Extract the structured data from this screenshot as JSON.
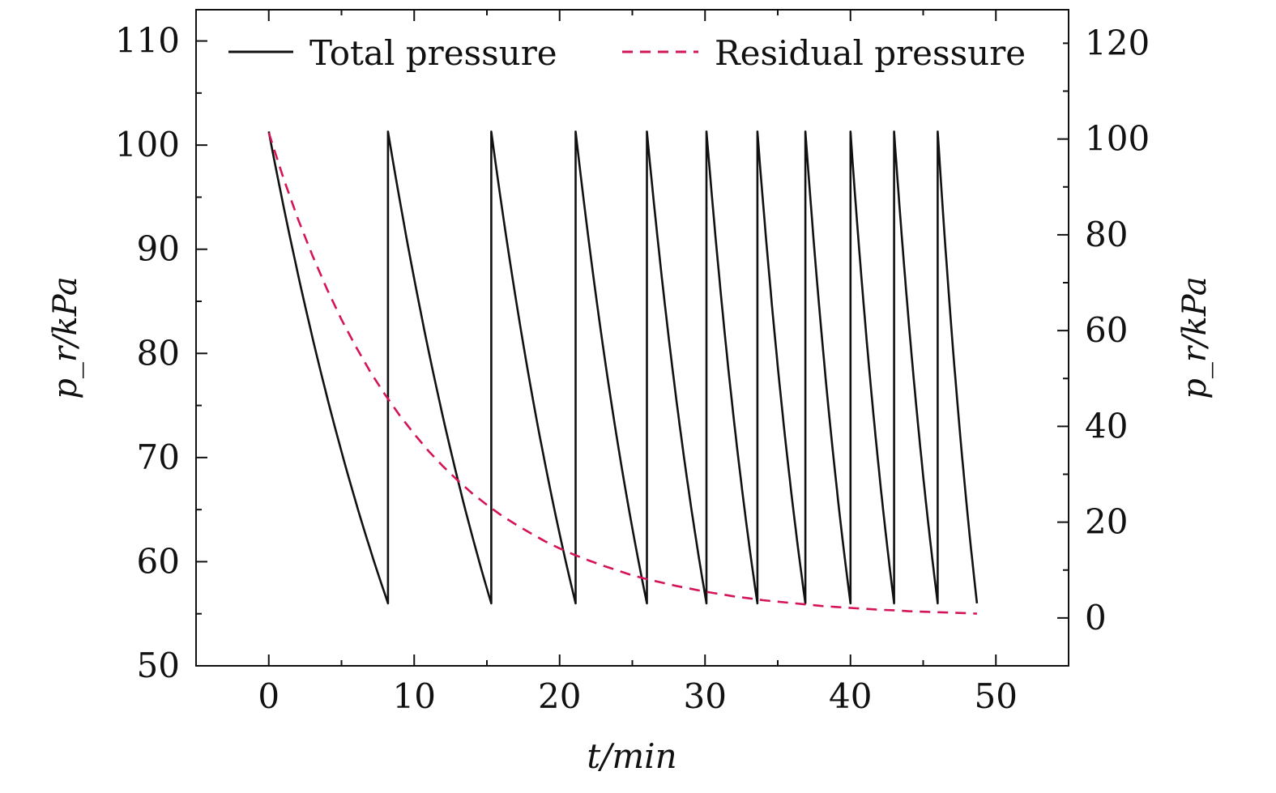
{
  "chart_data": {
    "type": "line",
    "xlabel": "t/min",
    "ylabel_left": "p_r/kPa",
    "ylabel_right": "p_r/kPa",
    "xlim": [
      -5,
      55
    ],
    "ylim_left": [
      50,
      113
    ],
    "ylim_right": [
      -10,
      127
    ],
    "x_ticks": [
      0,
      10,
      20,
      30,
      40,
      50
    ],
    "y_ticks_left": [
      50,
      60,
      70,
      80,
      90,
      100,
      110
    ],
    "y_ticks_right": [
      0,
      20,
      40,
      60,
      80,
      100,
      120
    ],
    "grid": false,
    "legend_position": "top",
    "colors": {
      "total": "#111111",
      "residual": "#d4145a"
    },
    "series": [
      {
        "name": "Total pressure",
        "axis": "left",
        "style": "solid",
        "cycles": [
          {
            "start": 0.0,
            "end": 8.2,
            "p_high": 101.3,
            "p_low": 56.0
          },
          {
            "start": 8.2,
            "end": 15.3,
            "p_high": 101.3,
            "p_low": 56.0
          },
          {
            "start": 15.3,
            "end": 21.1,
            "p_high": 101.3,
            "p_low": 56.0
          },
          {
            "start": 21.1,
            "end": 26.0,
            "p_high": 101.3,
            "p_low": 56.0
          },
          {
            "start": 26.0,
            "end": 30.1,
            "p_high": 101.3,
            "p_low": 56.0
          },
          {
            "start": 30.1,
            "end": 33.6,
            "p_high": 101.3,
            "p_low": 56.0
          },
          {
            "start": 33.6,
            "end": 36.9,
            "p_high": 101.3,
            "p_low": 56.0
          },
          {
            "start": 36.9,
            "end": 40.0,
            "p_high": 101.3,
            "p_low": 56.0
          },
          {
            "start": 40.0,
            "end": 43.0,
            "p_high": 101.3,
            "p_low": 56.0
          },
          {
            "start": 43.0,
            "end": 46.0,
            "p_high": 101.3,
            "p_low": 56.0
          },
          {
            "start": 46.0,
            "end": 48.7,
            "p_high": 101.3,
            "p_low": 56.0
          }
        ]
      },
      {
        "name": "Residual pressure",
        "axis": "right",
        "style": "dashed",
        "x": [
          0,
          1,
          2,
          3,
          4,
          5,
          6,
          7,
          8,
          9,
          10,
          11,
          12,
          13,
          14,
          15,
          16,
          17,
          18,
          19,
          20,
          21,
          22,
          23,
          24,
          25,
          26,
          27,
          28,
          29,
          30,
          31,
          32,
          33,
          34,
          35,
          36,
          37,
          38,
          39,
          40,
          41,
          42,
          43,
          44,
          45,
          46,
          47,
          48,
          48.7
        ],
        "y": [
          101.3,
          91.9,
          83.4,
          75.7,
          68.7,
          62.3,
          56.6,
          51.3,
          46.6,
          42.3,
          38.4,
          34.8,
          31.6,
          28.7,
          26.0,
          23.6,
          21.4,
          19.5,
          17.7,
          16.0,
          14.5,
          13.2,
          12.0,
          10.9,
          9.9,
          8.9,
          8.1,
          7.4,
          6.7,
          6.1,
          5.5,
          5.0,
          4.5,
          4.1,
          3.7,
          3.4,
          3.1,
          2.8,
          2.5,
          2.3,
          2.1,
          1.9,
          1.7,
          1.6,
          1.4,
          1.3,
          1.2,
          1.1,
          1.0,
          0.9
        ]
      }
    ]
  }
}
